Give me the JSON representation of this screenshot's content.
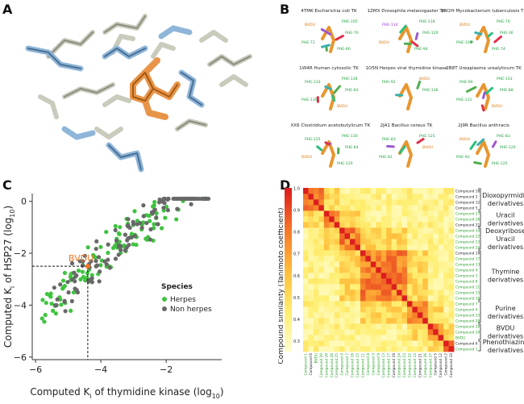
{
  "panels": {
    "A": {
      "label": "A"
    },
    "B": {
      "label": "B",
      "structures": [
        {
          "title": "4TMK Escherichia coli TK",
          "residues": [
            "BVDU",
            "PHE-105",
            "PHE-70",
            "PHE-72",
            "PHE-66"
          ]
        },
        {
          "title": "1ZMX Drosophila melanogaster TK",
          "residues": [
            "PHE-114",
            "PHE-118",
            "PHE-120",
            "BVDU",
            "PHE-94"
          ]
        },
        {
          "title": "1W2H Mycobacterium tuberculosis TK",
          "residues": [
            "BVDU",
            "PHE-70",
            "PHE-36",
            "PHE-105",
            "PHE-74"
          ]
        },
        {
          "title": "1W4R Human cytosolic TK",
          "residues": [
            "PHE-133",
            "PHE-128",
            "PHE-83",
            "PHE-135",
            "BVDU"
          ]
        },
        {
          "title": "1O5N Herpes viral thymidine kinase",
          "residues": [
            "PHE-92",
            "BVDU",
            "PHE-136"
          ]
        },
        {
          "title": "2B8T Ureaplasma urealyticum TK",
          "residues": [
            "PHE-96",
            "PHE-133",
            "PHE-88",
            "PHE-131",
            "BVDU"
          ]
        },
        {
          "title": "1XX6 Clostridium acetobutylicum TK",
          "residues": [
            "PHE-125",
            "PHE-130",
            "PHE-84",
            "BVDU",
            "PHE-120"
          ]
        },
        {
          "title": "2JA1 Bacillus cereus TK",
          "residues": [
            "PHE-83",
            "PHE-125",
            "BVDU",
            "PHE-92"
          ]
        },
        {
          "title": "2J9R Bacillus anthracis",
          "residues": [
            "BVDU",
            "PHE-83",
            "PHE-120",
            "PHE-92",
            "PHE-125"
          ]
        }
      ]
    },
    "C": {
      "label": "C"
    },
    "D": {
      "label": "D"
    }
  },
  "chart_data": [
    {
      "type": "scatter",
      "xlabel_main": "Computed K",
      "xlabel_sub": "i",
      "xlabel_tail": " of thymidine kinase (log",
      "xlabel_sub2": "10",
      "xlabel_end": ")",
      "ylabel_main": "Computed K",
      "ylabel_sub": "i",
      "ylabel_tail": " of HSP27 (log",
      "ylabel_sub2": "10",
      "ylabel_end": ")",
      "xlim": [
        -6.1,
        -0.3
      ],
      "ylim": [
        -6.1,
        0.3
      ],
      "xticks": [
        -6,
        -4,
        -2
      ],
      "yticks": [
        0,
        -2,
        -4,
        -6
      ],
      "xtick_labels": [
        "−6",
        "−4",
        "−2"
      ],
      "ytick_labels": [
        "0",
        "−2",
        "−4",
        "−6"
      ],
      "annotation": {
        "text": "BVDU",
        "x": -4.4,
        "y": -2.5,
        "color": "#f07820"
      },
      "legend_title": "Species",
      "series": [
        {
          "name": "Herpes",
          "color": "#3fc43f"
        },
        {
          "name": "Non herpes",
          "color": "#686868"
        }
      ],
      "points_seed": 7,
      "points_per_series": 130,
      "fit": {
        "slope": 1.05,
        "intercept": 2.0,
        "noise": 0.55,
        "xmin": -5.8,
        "xmax": -0.6
      }
    },
    {
      "type": "heatmap",
      "colorbar_label": "Compound similarity (Tanimoto coefficient)",
      "colorbar_ticks": [
        "1.0",
        "0.9",
        "0.8",
        "0.7",
        "0.6",
        "0.5",
        "0.4",
        "0.3"
      ],
      "colorbar_tick_values": [
        1.0,
        0.9,
        0.8,
        0.7,
        0.6,
        0.5,
        0.4,
        0.3
      ],
      "range": [
        0.25,
        1.0
      ],
      "rows": [
        "Compound 18",
        "Compound 2",
        "Compound 12",
        "Compound 5",
        "Compound 27",
        "Compound 26",
        "Compound 21",
        "Compound 14",
        "Compound 22",
        "Compound 23",
        "Compound 24",
        "Compound 19",
        "Compound 17",
        "Compound 13",
        "Compound 9",
        "Compound 3",
        "Compound 8",
        "Compound 11",
        "Compound 15",
        "Compound 16",
        "Compound 7",
        "Compound 4",
        "Compound 25",
        "Compound 28",
        "Compound 29",
        "Compound 20",
        "BVDU",
        "Compound 6",
        "Compound 1"
      ],
      "row_colors": [
        "#222",
        "#222",
        "#222",
        "#222",
        "#2aa02a",
        "#2aa02a",
        "#222",
        "#2aa02a",
        "#2aa02a",
        "#2aa02a",
        "#2aa02a",
        "#222",
        "#2aa02a",
        "#2aa02a",
        "#2aa02a",
        "#2aa02a",
        "#2aa02a",
        "#2aa02a",
        "#2aa02a",
        "#2aa02a",
        "#2aa02a",
        "#2aa02a",
        "#2aa02a",
        "#2aa02a",
        "#2aa02a",
        "#2aa02a",
        "#2aa02a",
        "#222",
        "#2aa02a"
      ],
      "groups": [
        {
          "label": "Dioxopyrmidin derivatives",
          "start": 0,
          "end": 3
        },
        {
          "label": "Uracil derivatives",
          "start": 4,
          "end": 6
        },
        {
          "label": "Deoxyribose Uracil derivatives",
          "start": 7,
          "end": 10
        },
        {
          "label": "Thymine derivatives",
          "start": 11,
          "end": 19
        },
        {
          "label": "Purine derivatives",
          "start": 20,
          "end": 23
        },
        {
          "label": "BVDU derivatives",
          "start": 24,
          "end": 26
        },
        {
          "label": "Phenothiazine derivatives",
          "start": 27,
          "end": 28
        }
      ]
    }
  ]
}
